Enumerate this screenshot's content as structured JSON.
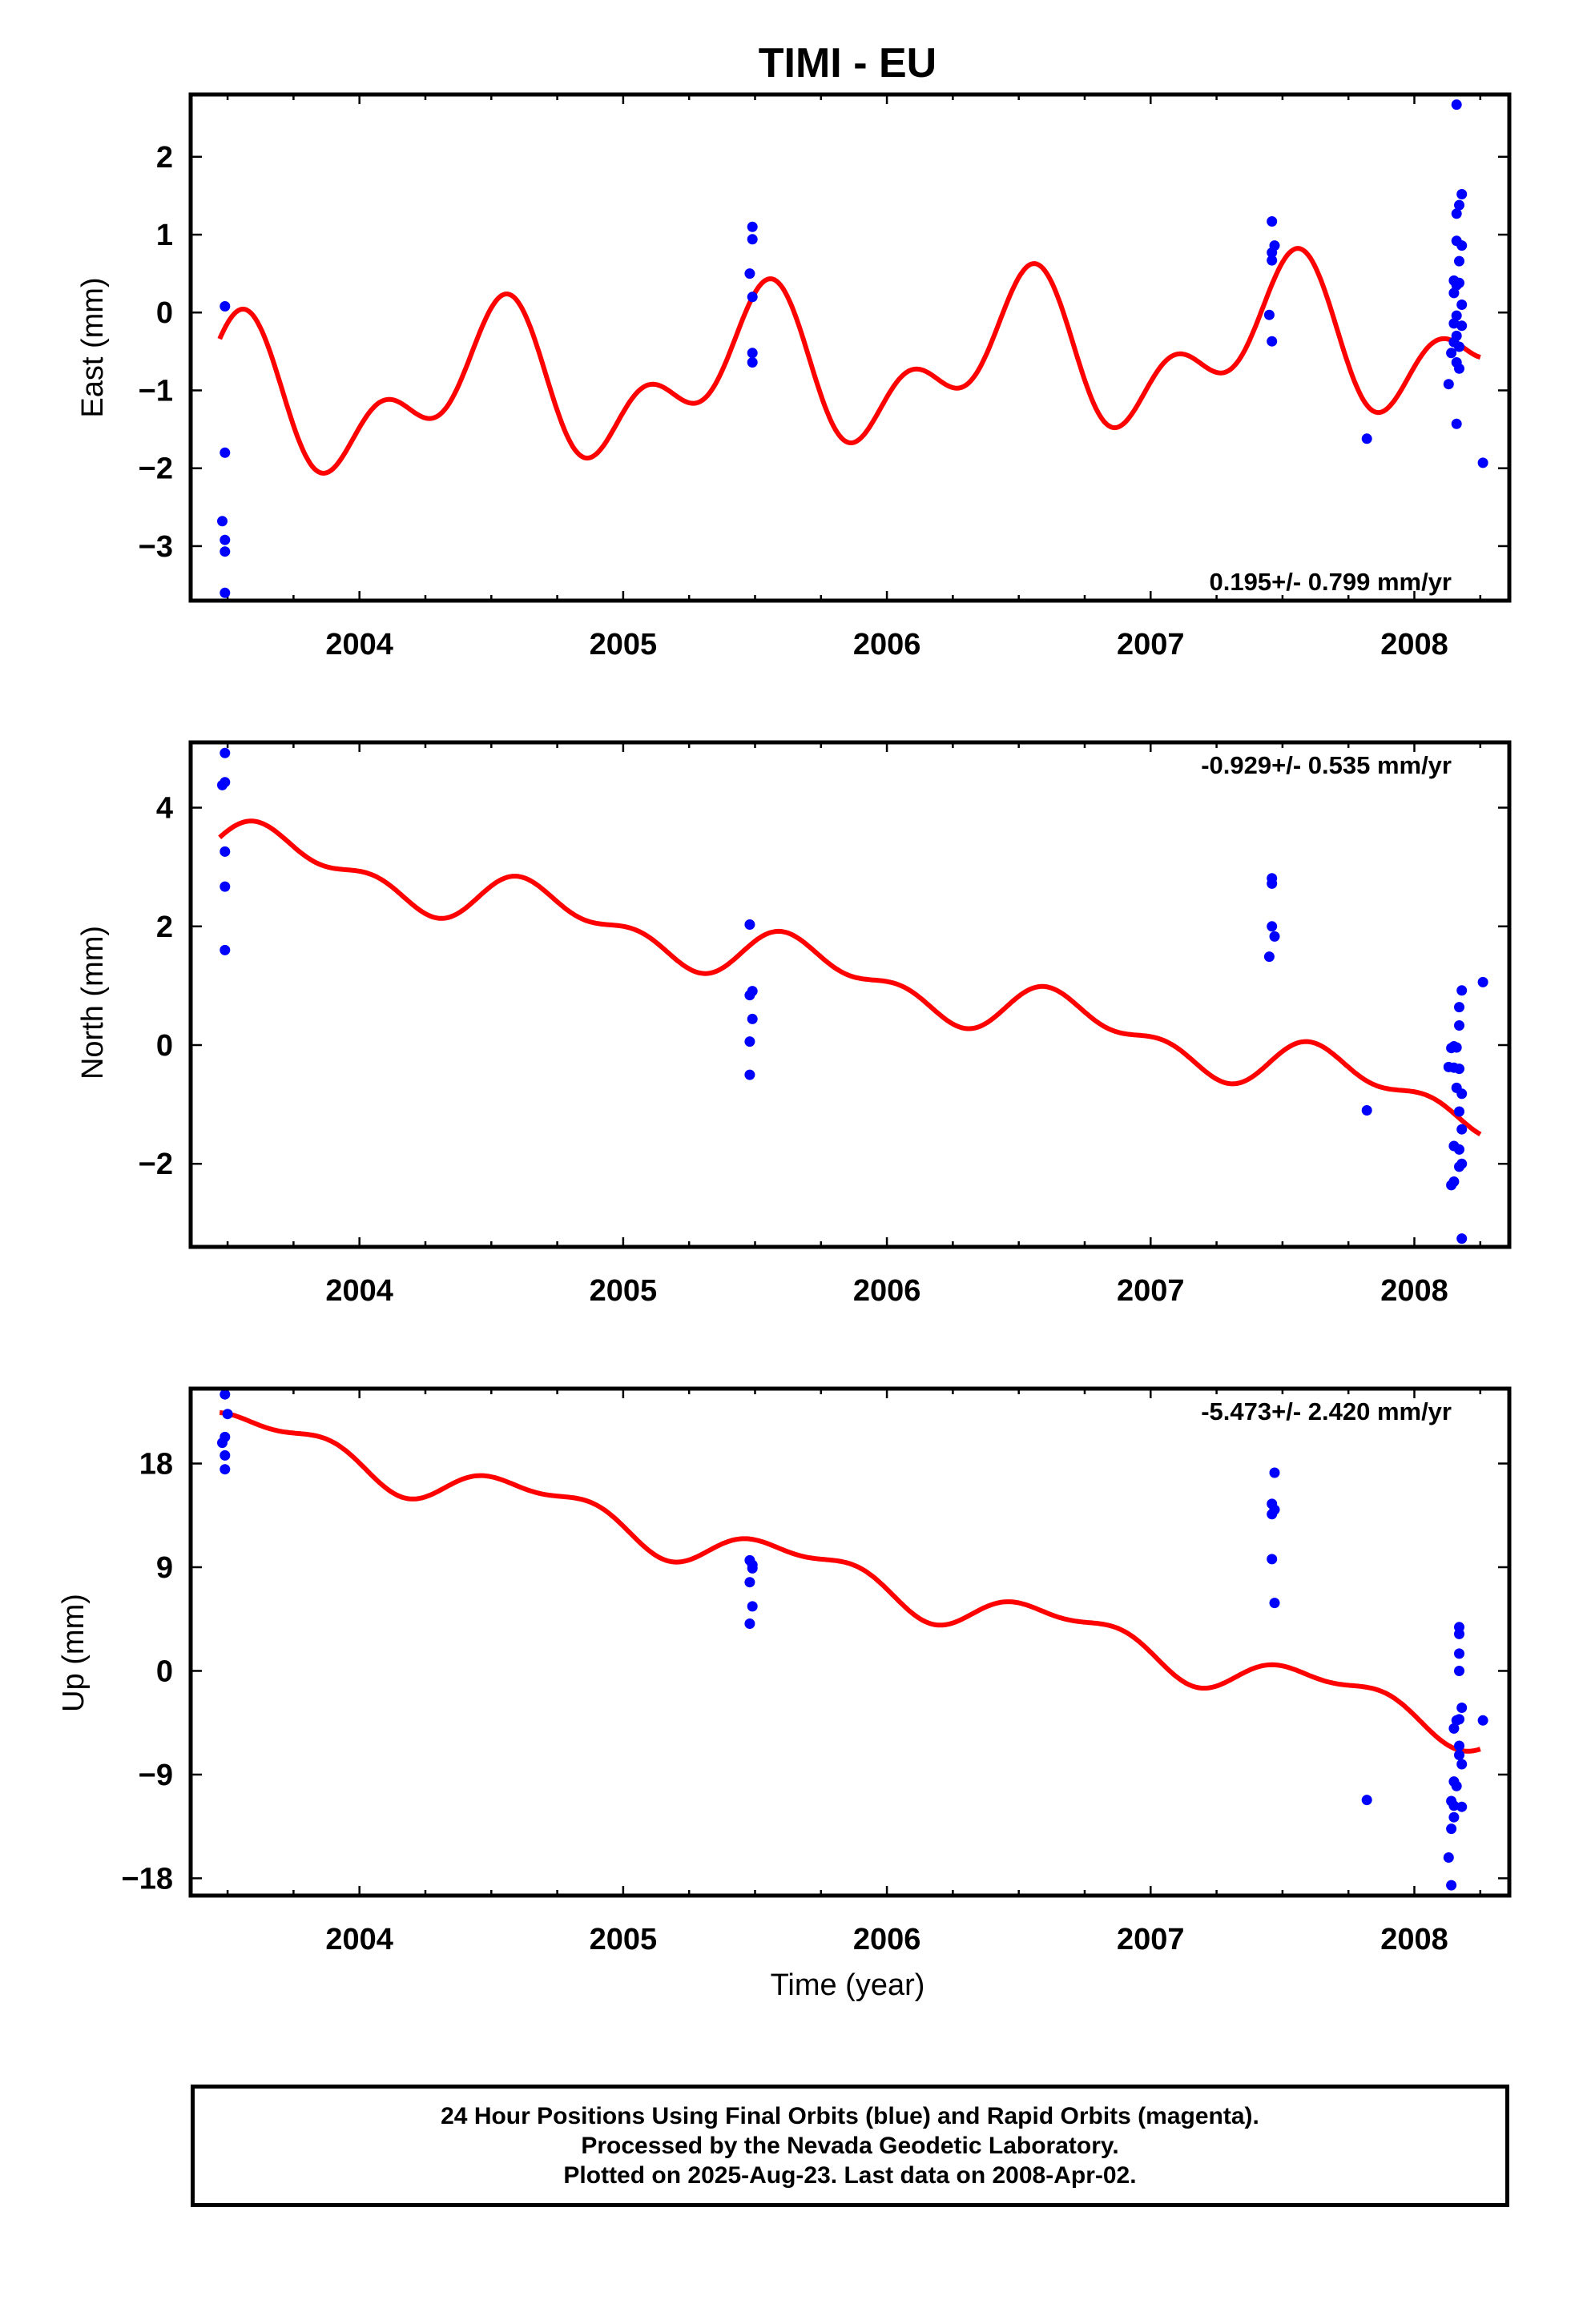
{
  "title": "TIMI - EU",
  "colors": {
    "data": "#0000ff",
    "model": "#ff0000",
    "axis": "#000000"
  },
  "chart_data": [
    {
      "type": "scatter",
      "panel": "east",
      "ylabel": "East (mm)",
      "xlabel": "",
      "rate": "0.195+/- 0.799 mm/yr",
      "xlim": [
        2003.36,
        2008.36
      ],
      "ylim": [
        -3.7,
        2.8
      ],
      "xticks": [
        2004,
        2005,
        2006,
        2007,
        2008
      ],
      "yticks": [
        -3,
        -2,
        -1,
        0,
        1,
        2
      ],
      "ytick_labels": [
        "−3",
        "−2",
        "−1",
        "0",
        "1",
        "2"
      ],
      "points": [
        [
          2003.49,
          0.08
        ],
        [
          2003.49,
          -1.8
        ],
        [
          2003.48,
          -2.68
        ],
        [
          2003.49,
          -2.92
        ],
        [
          2003.49,
          -3.07
        ],
        [
          2003.49,
          -3.6
        ],
        [
          2005.49,
          1.1
        ],
        [
          2005.49,
          0.94
        ],
        [
          2005.48,
          0.5
        ],
        [
          2005.49,
          0.2
        ],
        [
          2005.49,
          -0.52
        ],
        [
          2005.49,
          -0.64
        ],
        [
          2007.46,
          1.17
        ],
        [
          2007.47,
          0.86
        ],
        [
          2007.46,
          0.77
        ],
        [
          2007.46,
          0.67
        ],
        [
          2007.45,
          -0.03
        ],
        [
          2007.46,
          -0.37
        ],
        [
          2007.82,
          -1.62
        ],
        [
          2008.16,
          2.67
        ],
        [
          2008.18,
          1.52
        ],
        [
          2008.17,
          1.38
        ],
        [
          2008.16,
          1.27
        ],
        [
          2008.16,
          0.92
        ],
        [
          2008.18,
          0.86
        ],
        [
          2008.17,
          0.66
        ],
        [
          2008.15,
          0.41
        ],
        [
          2008.17,
          0.38
        ],
        [
          2008.16,
          0.35
        ],
        [
          2008.15,
          0.25
        ],
        [
          2008.18,
          0.1
        ],
        [
          2008.16,
          -0.04
        ],
        [
          2008.15,
          -0.14
        ],
        [
          2008.18,
          -0.17
        ],
        [
          2008.16,
          -0.3
        ],
        [
          2008.15,
          -0.38
        ],
        [
          2008.17,
          -0.44
        ],
        [
          2008.14,
          -0.52
        ],
        [
          2008.16,
          -0.64
        ],
        [
          2008.17,
          -0.72
        ],
        [
          2008.13,
          -0.92
        ],
        [
          2008.16,
          -1.43
        ],
        [
          2008.26,
          -1.93
        ]
      ],
      "model": {
        "start": 2003.47,
        "end": 2008.25,
        "origin": 2006.0,
        "offset": -0.69,
        "rate": 0.195,
        "a1": 0.72,
        "p1": 2004.25,
        "a2": 0.55,
        "p2": 2003.95
      }
    },
    {
      "type": "scatter",
      "panel": "north",
      "ylabel": "North (mm)",
      "xlabel": "",
      "rate": "-0.929+/- 0.535 mm/yr",
      "xlim": [
        2003.36,
        2008.36
      ],
      "ylim": [
        -3.4,
        5.1
      ],
      "xticks": [
        2004,
        2005,
        2006,
        2007,
        2008
      ],
      "yticks": [
        -2,
        0,
        2,
        4
      ],
      "ytick_labels": [
        "−2",
        "0",
        "2",
        "4"
      ],
      "points": [
        [
          2003.49,
          4.92
        ],
        [
          2003.49,
          4.43
        ],
        [
          2003.48,
          4.38
        ],
        [
          2003.49,
          3.26
        ],
        [
          2003.49,
          2.67
        ],
        [
          2003.49,
          1.6
        ],
        [
          2005.48,
          2.03
        ],
        [
          2005.49,
          0.91
        ],
        [
          2005.48,
          0.84
        ],
        [
          2005.49,
          0.44
        ],
        [
          2005.48,
          0.06
        ],
        [
          2005.48,
          -0.5
        ],
        [
          2007.46,
          2.81
        ],
        [
          2007.46,
          2.72
        ],
        [
          2007.46,
          2.0
        ],
        [
          2007.47,
          1.83
        ],
        [
          2007.45,
          1.49
        ],
        [
          2007.82,
          -1.1
        ],
        [
          2008.18,
          0.92
        ],
        [
          2008.17,
          0.64
        ],
        [
          2008.17,
          0.33
        ],
        [
          2008.15,
          -0.02
        ],
        [
          2008.16,
          -0.04
        ],
        [
          2008.14,
          -0.05
        ],
        [
          2008.13,
          -0.37
        ],
        [
          2008.15,
          -0.38
        ],
        [
          2008.17,
          -0.4
        ],
        [
          2008.16,
          -0.72
        ],
        [
          2008.18,
          -0.82
        ],
        [
          2008.17,
          -1.12
        ],
        [
          2008.18,
          -1.42
        ],
        [
          2008.15,
          -1.7
        ],
        [
          2008.17,
          -1.76
        ],
        [
          2008.18,
          -2.0
        ],
        [
          2008.17,
          -2.05
        ],
        [
          2008.15,
          -2.3
        ],
        [
          2008.14,
          -2.36
        ],
        [
          2008.18,
          -3.26
        ],
        [
          2008.26,
          1.06
        ]
      ],
      "model": {
        "start": 2003.47,
        "end": 2008.25,
        "origin": 2006.0,
        "offset": 1.05,
        "rate": -0.929,
        "a1": 0.35,
        "p1": 2003.45,
        "a2": 0.22,
        "p2": 2003.45
      }
    },
    {
      "type": "scatter",
      "panel": "up",
      "ylabel": "Up (mm)",
      "xlabel": "Time (year)",
      "rate": "-5.473+/- 2.420 mm/yr",
      "xlim": [
        2003.36,
        2008.36
      ],
      "ylim": [
        -19.5,
        24.5
      ],
      "xticks": [
        2004,
        2005,
        2006,
        2007,
        2008
      ],
      "yticks": [
        -18,
        -9,
        0,
        9,
        18
      ],
      "ytick_labels": [
        "−18",
        "−9",
        "0",
        "9",
        "18"
      ],
      "points": [
        [
          2003.49,
          24.0
        ],
        [
          2003.5,
          22.3
        ],
        [
          2003.49,
          20.3
        ],
        [
          2003.48,
          19.8
        ],
        [
          2003.49,
          18.7
        ],
        [
          2003.49,
          17.5
        ],
        [
          2005.48,
          9.6
        ],
        [
          2005.49,
          9.2
        ],
        [
          2005.49,
          8.9
        ],
        [
          2005.48,
          7.7
        ],
        [
          2005.49,
          5.6
        ],
        [
          2005.48,
          4.1
        ],
        [
          2007.47,
          17.2
        ],
        [
          2007.46,
          14.5
        ],
        [
          2007.47,
          14.0
        ],
        [
          2007.46,
          13.6
        ],
        [
          2007.46,
          9.7
        ],
        [
          2007.47,
          5.9
        ],
        [
          2007.82,
          -11.2
        ],
        [
          2008.17,
          3.8
        ],
        [
          2008.17,
          3.2
        ],
        [
          2008.17,
          1.5
        ],
        [
          2008.17,
          0.0
        ],
        [
          2008.18,
          -3.2
        ],
        [
          2008.17,
          -4.2
        ],
        [
          2008.16,
          -4.3
        ],
        [
          2008.15,
          -5.0
        ],
        [
          2008.17,
          -6.5
        ],
        [
          2008.17,
          -7.3
        ],
        [
          2008.18,
          -8.1
        ],
        [
          2008.15,
          -9.6
        ],
        [
          2008.16,
          -10.0
        ],
        [
          2008.14,
          -11.3
        ],
        [
          2008.15,
          -11.7
        ],
        [
          2008.18,
          -11.8
        ],
        [
          2008.15,
          -12.7
        ],
        [
          2008.14,
          -13.7
        ],
        [
          2008.13,
          -16.2
        ],
        [
          2008.14,
          -18.6
        ],
        [
          2008.26,
          -4.3
        ]
      ],
      "model": {
        "start": 2003.47,
        "end": 2008.25,
        "origin": 2006.0,
        "offset": 7.4,
        "rate": -5.473,
        "a1": 1.6,
        "p1": 2003.42,
        "a2": 0.8,
        "p2": 2003.8
      }
    }
  ],
  "caption": {
    "line1": "24 Hour Positions Using Final Orbits (blue) and Rapid Orbits (magenta).",
    "line2": "Processed by the Nevada Geodetic Laboratory.",
    "line3": "Plotted on 2025-Aug-23. Last data on 2008-Apr-02."
  }
}
